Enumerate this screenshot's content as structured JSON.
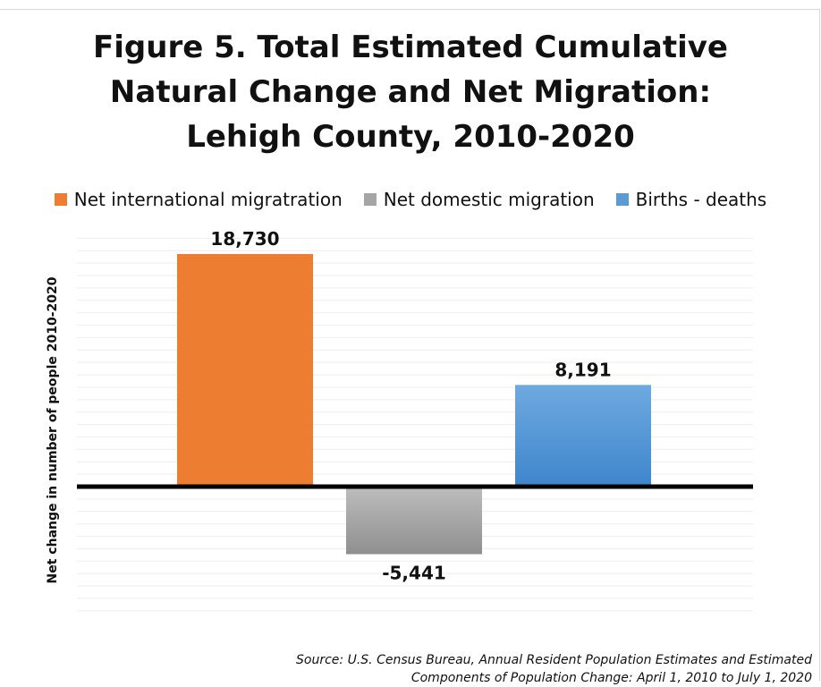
{
  "title_lines": [
    "Figure 5. Total Estimated Cumulative",
    "Natural Change and Net Migration:",
    "Lehigh County, 2010-2020"
  ],
  "source_lines": [
    "Source: U.S. Census Bureau, Annual Resident Population Estimates and Estimated",
    "Components of Population Change: April 1, 2010 to July 1, 2020"
  ],
  "colors": {
    "orange": "#ED7D31",
    "gray": "#A5A5A5",
    "blue": "#5B9BD5",
    "axis": "#000000",
    "grid": "#EEEEEE"
  },
  "chart_data": {
    "type": "bar",
    "title": "Figure 5. Total Estimated Cumulative Natural Change and Net Migration: Lehigh County, 2010-2020",
    "xlabel": "",
    "ylabel": "Net change in number of people 2010-2020",
    "categories": [
      "Net international migratration",
      "Net domestic migration",
      "Births  - deaths"
    ],
    "values": [
      18730,
      -5441,
      8191
    ],
    "data_labels": [
      "18,730",
      "-5,441",
      "8,191"
    ],
    "ylim": [
      -10000,
      20000
    ],
    "grid": true,
    "legend": "top-center"
  }
}
